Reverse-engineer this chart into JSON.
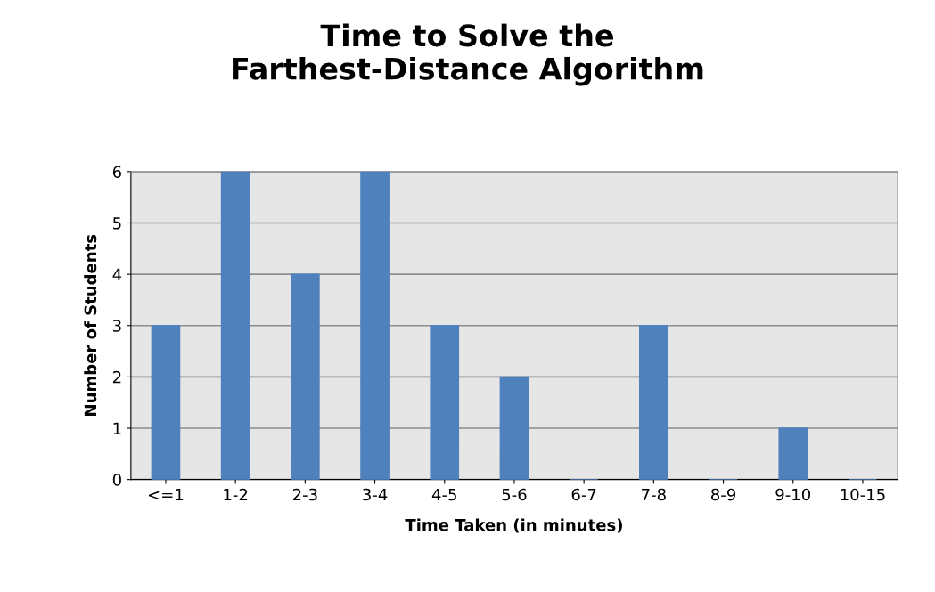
{
  "chart_data": {
    "type": "bar",
    "title": "Time to Solve the\nFarthest-Distance Algorithm",
    "xlabel": "Time Taken (in minutes)",
    "ylabel": "Number of Students",
    "categories": [
      "<=1",
      "1-2",
      "2-3",
      "3-4",
      "4-5",
      "5-6",
      "6-7",
      "7-8",
      "8-9",
      "9-10",
      "10-15"
    ],
    "values": [
      3,
      6,
      4,
      6,
      3,
      2,
      0,
      3,
      0,
      1,
      0
    ],
    "color": "#4f81bd",
    "ylim": [
      0,
      6
    ],
    "yticks": [
      0,
      1,
      2,
      3,
      4,
      5,
      6
    ],
    "grid": "y"
  }
}
